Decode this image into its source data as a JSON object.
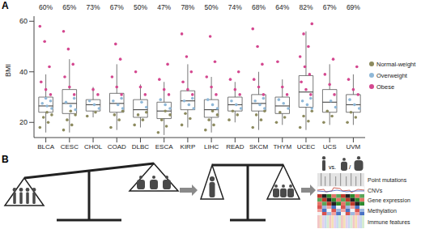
{
  "panel_label": "A",
  "chart_data": {
    "type": "box",
    "ylabel": "BMI",
    "categories": [
      "BLCA",
      "CESC",
      "CHOL",
      "COAD",
      "DLBC",
      "ESCA",
      "KIRP",
      "LIHC",
      "READ",
      "SKCM",
      "THYM",
      "UCEC",
      "UCS",
      "UVM"
    ],
    "percent_labels": [
      "60%",
      "65%",
      "73%",
      "67%",
      "50%",
      "47%",
      "78%",
      "50%",
      "74%",
      "68%",
      "64%",
      "82%",
      "67%",
      "69%"
    ],
    "ylim": [
      14,
      62
    ],
    "yticks": [
      20,
      40,
      60
    ],
    "grid": false,
    "legend": "right",
    "boxes": [
      {
        "min": 16,
        "q1": 24,
        "median": 26.5,
        "q3": 30,
        "max": 39
      },
      {
        "min": 16,
        "q1": 23.5,
        "median": 27.5,
        "q3": 33,
        "max": 45
      },
      {
        "min": 22,
        "q1": 24.5,
        "median": 27,
        "q3": 29,
        "max": 34
      },
      {
        "min": 17,
        "q1": 24,
        "median": 27.5,
        "q3": 31.5,
        "max": 43
      },
      {
        "min": 18,
        "q1": 22,
        "median": 25,
        "q3": 29,
        "max": 35
      },
      {
        "min": 15,
        "q1": 21.5,
        "median": 24.5,
        "q3": 28,
        "max": 36
      },
      {
        "min": 18,
        "q1": 25,
        "median": 28.5,
        "q3": 32.5,
        "max": 43
      },
      {
        "min": 16,
        "q1": 22,
        "median": 25,
        "q3": 29,
        "max": 38
      },
      {
        "min": 20,
        "q1": 24.5,
        "median": 27,
        "q3": 30,
        "max": 36
      },
      {
        "min": 17,
        "q1": 24.5,
        "median": 27.5,
        "q3": 31,
        "max": 40
      },
      {
        "min": 19,
        "q1": 23.5,
        "median": 26.5,
        "q3": 30,
        "max": 37
      },
      {
        "min": 17,
        "q1": 26,
        "median": 32,
        "q3": 38.5,
        "max": 56
      },
      {
        "min": 19,
        "q1": 24,
        "median": 28,
        "q3": 33,
        "max": 43
      },
      {
        "min": 19,
        "q1": 24,
        "median": 27,
        "q3": 31,
        "max": 39
      }
    ],
    "series": [
      {
        "name": "Normal-weight",
        "color": "#8c8a5e",
        "marker": "circle",
        "values": [
          [
            18,
            20,
            22,
            23,
            24
          ],
          [
            17,
            19,
            21,
            23,
            24.5
          ],
          [
            22.5,
            24
          ],
          [
            18,
            21,
            23,
            24.5
          ],
          [
            19,
            21,
            23,
            24
          ],
          [
            16,
            18.5,
            21,
            23,
            24.5
          ],
          [
            19,
            21.5,
            23.5
          ],
          [
            17,
            19,
            21,
            23,
            24.5
          ],
          [
            21,
            23,
            24.5
          ],
          [
            18,
            21,
            23,
            24.5
          ],
          [
            20,
            22,
            24
          ],
          [
            18,
            20.5,
            22.5,
            24.5
          ],
          [
            20,
            22.5,
            24.5
          ],
          [
            20,
            22,
            24
          ]
        ]
      },
      {
        "name": "Overweight",
        "color": "#8fb8d8",
        "marker": "circle",
        "values": [
          [
            25.5,
            26.5,
            27.5,
            28.5,
            29.5
          ],
          [
            25,
            26.5,
            28,
            29.5
          ],
          [
            25.5,
            27,
            28.5
          ],
          [
            25.5,
            27,
            28.5,
            29.5
          ],
          [
            26,
            28
          ],
          [
            25.5,
            27,
            29
          ],
          [
            25.5,
            27,
            28.5,
            29.5
          ],
          [
            25.5,
            27,
            29
          ],
          [
            25.5,
            27,
            28.5
          ],
          [
            25.5,
            27,
            28.5,
            29.5
          ],
          [
            25.5,
            27.5,
            29
          ],
          [
            25.5,
            27,
            28.5,
            29.5
          ],
          [
            26,
            28.5
          ],
          [
            25.5,
            27,
            29
          ]
        ]
      },
      {
        "name": "Obese",
        "color": "#d4478f",
        "marker": "circle",
        "values": [
          [
            31,
            33,
            36,
            42,
            52,
            58
          ],
          [
            31,
            34,
            38,
            43,
            49,
            56
          ],
          [
            31,
            33
          ],
          [
            31,
            34,
            38,
            45,
            51
          ],
          [
            31,
            34,
            40
          ],
          [
            31,
            33,
            37,
            43
          ],
          [
            31,
            33,
            36,
            40,
            46,
            55
          ],
          [
            31,
            34,
            38,
            44,
            54
          ],
          [
            31,
            33,
            37,
            40
          ],
          [
            31,
            34,
            37,
            43,
            50,
            57
          ],
          [
            31,
            34,
            44
          ],
          [
            31,
            33,
            36,
            39,
            42,
            46,
            50,
            55,
            59
          ],
          [
            31,
            35,
            39,
            45
          ],
          [
            31,
            33,
            37,
            42
          ]
        ]
      }
    ]
  },
  "diagram": {
    "panel_label": "B",
    "vs_text": "vs.",
    "separator": "/",
    "features": [
      "Point mutations",
      "CNVs",
      "Gene expression",
      "Methylation",
      "Immune features"
    ]
  }
}
